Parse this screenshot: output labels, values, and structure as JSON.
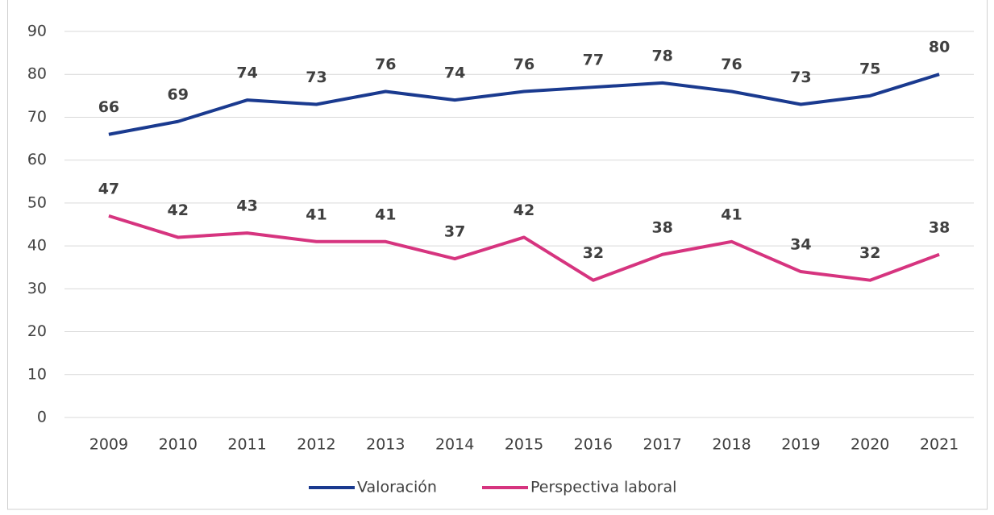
{
  "chart_data": {
    "type": "line",
    "categories": [
      "2009",
      "2010",
      "2011",
      "2012",
      "2013",
      "2014",
      "2015",
      "2016",
      "2017",
      "2018",
      "2019",
      "2020",
      "2021"
    ],
    "series": [
      {
        "name": "Valoración",
        "color": "#1a3a8f",
        "values": [
          66,
          69,
          74,
          73,
          76,
          74,
          76,
          77,
          78,
          76,
          73,
          75,
          80
        ]
      },
      {
        "name": "Perspectiva laboral",
        "color": "#d6347f",
        "values": [
          47,
          42,
          43,
          41,
          41,
          37,
          42,
          32,
          38,
          41,
          34,
          32,
          38
        ]
      }
    ],
    "ylim": [
      0,
      90
    ],
    "yticks": [
      0,
      10,
      20,
      30,
      40,
      50,
      60,
      70,
      80,
      90
    ],
    "grid": true,
    "legend": "bottom"
  }
}
